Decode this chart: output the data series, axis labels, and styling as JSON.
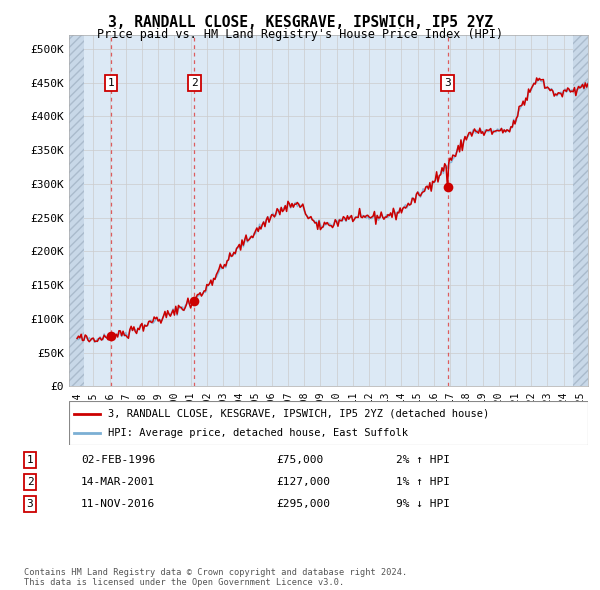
{
  "title": "3, RANDALL CLOSE, KESGRAVE, IPSWICH, IP5 2YZ",
  "subtitle": "Price paid vs. HM Land Registry's House Price Index (HPI)",
  "hpi_label": "HPI: Average price, detached house, East Suffolk",
  "property_label": "3, RANDALL CLOSE, KESGRAVE, IPSWICH, IP5 2YZ (detached house)",
  "sales": [
    {
      "num": 1,
      "date_str": "02-FEB-1996",
      "price": 75000,
      "hpi_pct": "2% ↑ HPI",
      "year": 1996.09
    },
    {
      "num": 2,
      "date_str": "14-MAR-2001",
      "price": 127000,
      "hpi_pct": "1% ↑ HPI",
      "year": 2001.21
    },
    {
      "num": 3,
      "date_str": "11-NOV-2016",
      "price": 295000,
      "hpi_pct": "9% ↓ HPI",
      "year": 2016.86
    }
  ],
  "ylim": [
    0,
    520000
  ],
  "xlim_start": 1993.5,
  "xlim_end": 2025.5,
  "hatch_right_start": 2024.58,
  "yticks": [
    0,
    50000,
    100000,
    150000,
    200000,
    250000,
    300000,
    350000,
    400000,
    450000,
    500000
  ],
  "ytick_labels": [
    "£0",
    "£50K",
    "£100K",
    "£150K",
    "£200K",
    "£250K",
    "£300K",
    "£350K",
    "£400K",
    "£450K",
    "£500K"
  ],
  "xtick_years": [
    1994,
    1995,
    1996,
    1997,
    1998,
    1999,
    2000,
    2001,
    2002,
    2003,
    2004,
    2005,
    2006,
    2007,
    2008,
    2009,
    2010,
    2011,
    2012,
    2013,
    2014,
    2015,
    2016,
    2017,
    2018,
    2019,
    2020,
    2021,
    2022,
    2023,
    2024,
    2025
  ],
  "hpi_color": "#7bafd4",
  "price_color": "#cc0000",
  "sale_dot_color": "#cc0000",
  "dashed_line_color": "#dd4444",
  "grid_color": "#cccccc",
  "bg_color": "#dce9f5",
  "hatch_bg": "#c8d8e8",
  "footer_text": "Contains HM Land Registry data © Crown copyright and database right 2024.\nThis data is licensed under the Open Government Licence v3.0."
}
